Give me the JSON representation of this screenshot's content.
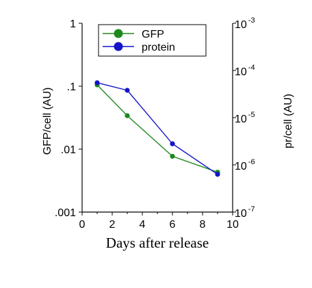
{
  "chart_data": {
    "type": "line",
    "title": "",
    "xlabel": "Days after release",
    "ylabel_left": "GFP/cell (AU)",
    "ylabel_right": "pr/cell (AU)",
    "xlim": [
      0,
      10
    ],
    "x_ticks": [
      "0",
      "2",
      "4",
      "6",
      "8",
      "10"
    ],
    "y_left_scale": "log",
    "y_left_lim": [
      0.001,
      1
    ],
    "y_left_ticks": [
      ".001",
      ".01",
      ".1",
      "1"
    ],
    "y_right_scale": "log",
    "y_right_lim": [
      1e-07,
      0.001
    ],
    "y_right_ticks": [
      {
        "base": "10",
        "exp": "-7"
      },
      {
        "base": "10",
        "exp": "-6"
      },
      {
        "base": "10",
        "exp": "-5"
      },
      {
        "base": "10",
        "exp": "-4"
      },
      {
        "base": "10",
        "exp": "-3"
      }
    ],
    "grid": false,
    "legend_position": "top",
    "series": [
      {
        "name": "GFP",
        "axis": "left",
        "color": "#1e8a1e",
        "x": [
          1,
          3,
          6,
          9
        ],
        "y": [
          0.105,
          0.034,
          0.0077,
          0.0043
        ]
      },
      {
        "name": "protein",
        "axis": "right",
        "color": "#1414c8",
        "x": [
          1,
          3,
          6,
          9
        ],
        "y": [
          5.5e-05,
          3.8e-05,
          2.8e-06,
          6.3e-07
        ]
      }
    ]
  }
}
